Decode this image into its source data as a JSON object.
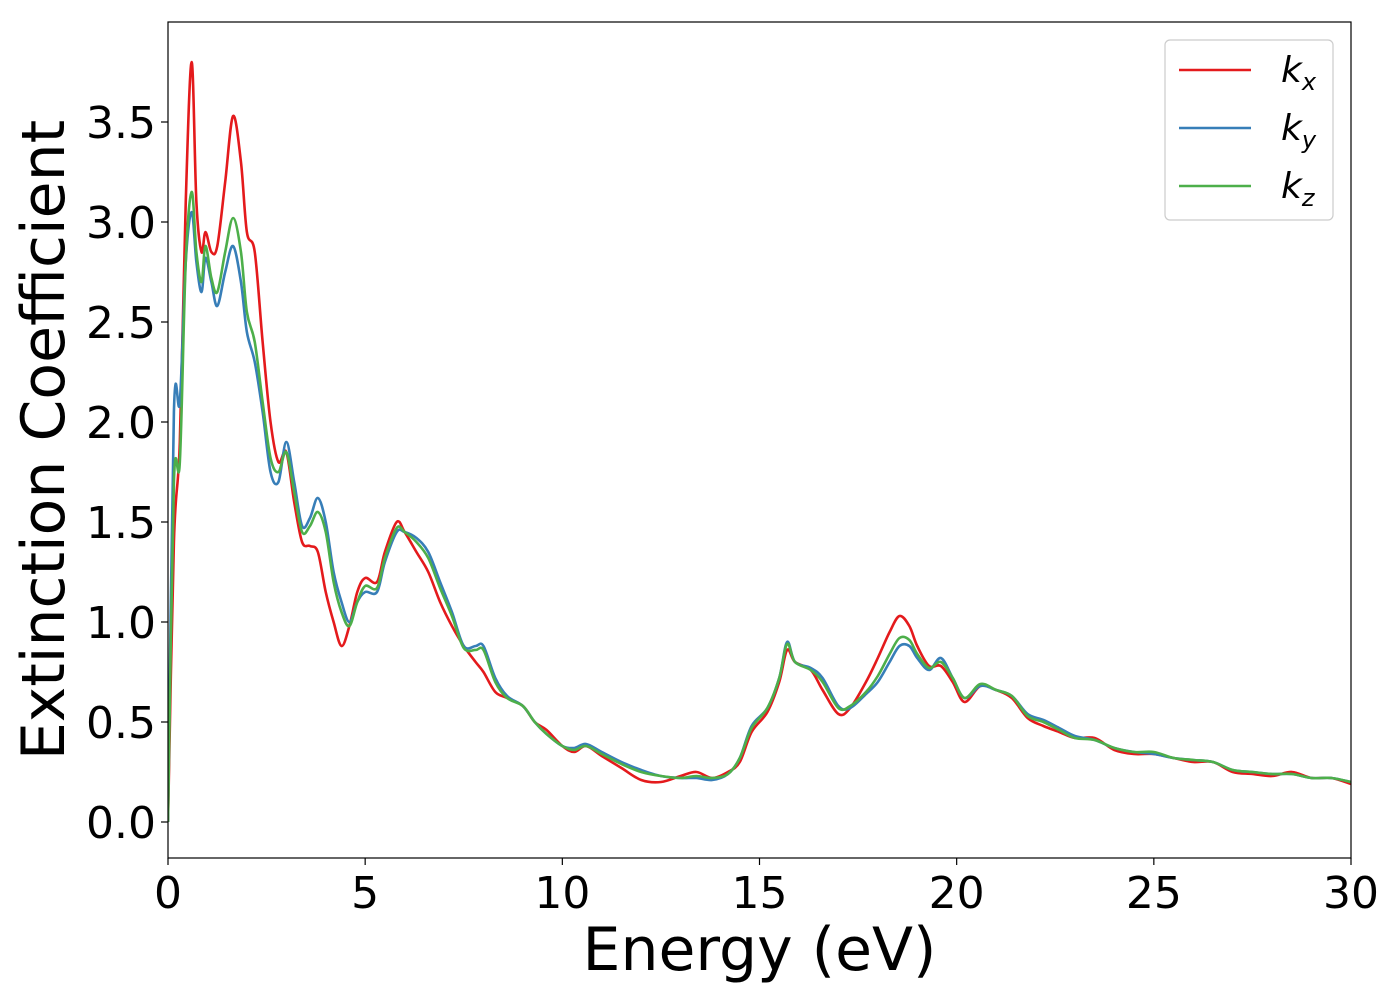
{
  "chart_data": {
    "type": "line",
    "title": "",
    "xlabel": "Energy (eV)",
    "ylabel": "Extinction Coefficient",
    "xlim": [
      0,
      30
    ],
    "ylim": [
      -0.18,
      4.0
    ],
    "xticks": [
      0,
      5,
      10,
      15,
      20,
      25,
      30
    ],
    "xtick_labels": [
      "0",
      "5",
      "10",
      "15",
      "20",
      "25",
      "30"
    ],
    "yticks": [
      0.0,
      0.5,
      1.0,
      1.5,
      2.0,
      2.5,
      3.0,
      3.5
    ],
    "ytick_labels": [
      "0.0",
      "0.5",
      "1.0",
      "1.5",
      "2.0",
      "2.5",
      "3.0",
      "3.5"
    ],
    "grid": false,
    "legend_position": "top-right",
    "series": [
      {
        "name": "k_x",
        "label_main": "k",
        "label_sub": "x",
        "color": "#e41a1c",
        "points": [
          [
            0,
            0
          ],
          [
            0.15,
            1.4
          ],
          [
            0.3,
            1.9
          ],
          [
            0.45,
            3.1
          ],
          [
            0.6,
            3.8
          ],
          [
            0.72,
            3.1
          ],
          [
            0.85,
            2.85
          ],
          [
            0.95,
            2.95
          ],
          [
            1.1,
            2.85
          ],
          [
            1.25,
            2.88
          ],
          [
            1.45,
            3.2
          ],
          [
            1.65,
            3.53
          ],
          [
            1.85,
            3.3
          ],
          [
            2.0,
            2.95
          ],
          [
            2.2,
            2.85
          ],
          [
            2.4,
            2.4
          ],
          [
            2.6,
            2.0
          ],
          [
            2.8,
            1.8
          ],
          [
            3.0,
            1.85
          ],
          [
            3.2,
            1.6
          ],
          [
            3.4,
            1.4
          ],
          [
            3.6,
            1.38
          ],
          [
            3.8,
            1.35
          ],
          [
            4.0,
            1.15
          ],
          [
            4.2,
            1.0
          ],
          [
            4.4,
            0.88
          ],
          [
            4.6,
            0.98
          ],
          [
            4.8,
            1.15
          ],
          [
            5.0,
            1.22
          ],
          [
            5.3,
            1.2
          ],
          [
            5.5,
            1.35
          ],
          [
            5.8,
            1.5
          ],
          [
            6.0,
            1.45
          ],
          [
            6.3,
            1.35
          ],
          [
            6.6,
            1.25
          ],
          [
            6.9,
            1.1
          ],
          [
            7.2,
            0.98
          ],
          [
            7.5,
            0.88
          ],
          [
            7.8,
            0.8
          ],
          [
            8.0,
            0.75
          ],
          [
            8.3,
            0.65
          ],
          [
            8.6,
            0.62
          ],
          [
            9.0,
            0.58
          ],
          [
            9.3,
            0.5
          ],
          [
            9.6,
            0.46
          ],
          [
            10.0,
            0.38
          ],
          [
            10.3,
            0.35
          ],
          [
            10.6,
            0.38
          ],
          [
            11.0,
            0.33
          ],
          [
            11.5,
            0.27
          ],
          [
            12.0,
            0.21
          ],
          [
            12.5,
            0.2
          ],
          [
            13.0,
            0.23
          ],
          [
            13.4,
            0.25
          ],
          [
            13.8,
            0.22
          ],
          [
            14.2,
            0.25
          ],
          [
            14.5,
            0.3
          ],
          [
            14.8,
            0.45
          ],
          [
            15.2,
            0.55
          ],
          [
            15.5,
            0.7
          ],
          [
            15.7,
            0.86
          ],
          [
            15.9,
            0.8
          ],
          [
            16.3,
            0.76
          ],
          [
            16.6,
            0.66
          ],
          [
            17.0,
            0.54
          ],
          [
            17.3,
            0.57
          ],
          [
            17.7,
            0.7
          ],
          [
            18.0,
            0.82
          ],
          [
            18.3,
            0.95
          ],
          [
            18.55,
            1.03
          ],
          [
            18.8,
            0.98
          ],
          [
            19.0,
            0.88
          ],
          [
            19.3,
            0.78
          ],
          [
            19.6,
            0.78
          ],
          [
            19.9,
            0.7
          ],
          [
            20.2,
            0.6
          ],
          [
            20.6,
            0.68
          ],
          [
            21.0,
            0.66
          ],
          [
            21.4,
            0.62
          ],
          [
            21.8,
            0.52
          ],
          [
            22.2,
            0.48
          ],
          [
            22.6,
            0.45
          ],
          [
            23.0,
            0.42
          ],
          [
            23.5,
            0.42
          ],
          [
            24.0,
            0.36
          ],
          [
            24.5,
            0.34
          ],
          [
            25.0,
            0.34
          ],
          [
            25.5,
            0.32
          ],
          [
            26.0,
            0.3
          ],
          [
            26.5,
            0.3
          ],
          [
            27.0,
            0.25
          ],
          [
            27.5,
            0.24
          ],
          [
            28.0,
            0.23
          ],
          [
            28.5,
            0.25
          ],
          [
            29.0,
            0.22
          ],
          [
            29.5,
            0.22
          ],
          [
            30.0,
            0.19
          ]
        ]
      },
      {
        "name": "k_y",
        "label_main": "k",
        "label_sub": "y",
        "color": "#377eb8",
        "points": [
          [
            0,
            0
          ],
          [
            0.15,
            2.05
          ],
          [
            0.3,
            2.1
          ],
          [
            0.45,
            2.8
          ],
          [
            0.6,
            3.05
          ],
          [
            0.72,
            2.8
          ],
          [
            0.85,
            2.65
          ],
          [
            0.95,
            2.82
          ],
          [
            1.1,
            2.7
          ],
          [
            1.25,
            2.58
          ],
          [
            1.45,
            2.75
          ],
          [
            1.65,
            2.88
          ],
          [
            1.85,
            2.7
          ],
          [
            2.0,
            2.45
          ],
          [
            2.2,
            2.3
          ],
          [
            2.4,
            2.05
          ],
          [
            2.6,
            1.75
          ],
          [
            2.8,
            1.7
          ],
          [
            3.0,
            1.9
          ],
          [
            3.2,
            1.7
          ],
          [
            3.4,
            1.48
          ],
          [
            3.6,
            1.52
          ],
          [
            3.8,
            1.62
          ],
          [
            4.0,
            1.5
          ],
          [
            4.2,
            1.25
          ],
          [
            4.4,
            1.1
          ],
          [
            4.6,
            1.0
          ],
          [
            4.8,
            1.1
          ],
          [
            5.0,
            1.15
          ],
          [
            5.3,
            1.15
          ],
          [
            5.5,
            1.3
          ],
          [
            5.8,
            1.45
          ],
          [
            6.0,
            1.45
          ],
          [
            6.3,
            1.42
          ],
          [
            6.6,
            1.35
          ],
          [
            6.9,
            1.2
          ],
          [
            7.2,
            1.05
          ],
          [
            7.5,
            0.88
          ],
          [
            7.8,
            0.88
          ],
          [
            8.0,
            0.88
          ],
          [
            8.3,
            0.72
          ],
          [
            8.6,
            0.63
          ],
          [
            9.0,
            0.58
          ],
          [
            9.3,
            0.5
          ],
          [
            9.6,
            0.44
          ],
          [
            10.0,
            0.38
          ],
          [
            10.3,
            0.37
          ],
          [
            10.6,
            0.39
          ],
          [
            11.0,
            0.35
          ],
          [
            11.5,
            0.3
          ],
          [
            12.0,
            0.26
          ],
          [
            12.5,
            0.23
          ],
          [
            13.0,
            0.22
          ],
          [
            13.4,
            0.22
          ],
          [
            13.8,
            0.21
          ],
          [
            14.2,
            0.24
          ],
          [
            14.5,
            0.32
          ],
          [
            14.8,
            0.48
          ],
          [
            15.2,
            0.57
          ],
          [
            15.5,
            0.72
          ],
          [
            15.7,
            0.9
          ],
          [
            15.9,
            0.8
          ],
          [
            16.3,
            0.77
          ],
          [
            16.6,
            0.72
          ],
          [
            17.0,
            0.58
          ],
          [
            17.3,
            0.57
          ],
          [
            17.7,
            0.64
          ],
          [
            18.0,
            0.7
          ],
          [
            18.3,
            0.8
          ],
          [
            18.55,
            0.88
          ],
          [
            18.8,
            0.88
          ],
          [
            19.0,
            0.82
          ],
          [
            19.3,
            0.76
          ],
          [
            19.6,
            0.82
          ],
          [
            19.9,
            0.72
          ],
          [
            20.2,
            0.62
          ],
          [
            20.6,
            0.68
          ],
          [
            21.0,
            0.66
          ],
          [
            21.4,
            0.63
          ],
          [
            21.8,
            0.54
          ],
          [
            22.2,
            0.51
          ],
          [
            22.6,
            0.47
          ],
          [
            23.0,
            0.43
          ],
          [
            23.5,
            0.41
          ],
          [
            24.0,
            0.37
          ],
          [
            24.5,
            0.35
          ],
          [
            25.0,
            0.34
          ],
          [
            25.5,
            0.32
          ],
          [
            26.0,
            0.31
          ],
          [
            26.5,
            0.3
          ],
          [
            27.0,
            0.26
          ],
          [
            27.5,
            0.25
          ],
          [
            28.0,
            0.24
          ],
          [
            28.5,
            0.24
          ],
          [
            29.0,
            0.22
          ],
          [
            29.5,
            0.22
          ],
          [
            30.0,
            0.2
          ]
        ]
      },
      {
        "name": "k_z",
        "label_main": "k",
        "label_sub": "z",
        "color": "#4daf4a",
        "points": [
          [
            0,
            0
          ],
          [
            0.15,
            1.7
          ],
          [
            0.3,
            1.8
          ],
          [
            0.45,
            2.8
          ],
          [
            0.6,
            3.15
          ],
          [
            0.72,
            2.85
          ],
          [
            0.85,
            2.7
          ],
          [
            0.95,
            2.88
          ],
          [
            1.1,
            2.72
          ],
          [
            1.25,
            2.65
          ],
          [
            1.45,
            2.85
          ],
          [
            1.65,
            3.02
          ],
          [
            1.85,
            2.85
          ],
          [
            2.0,
            2.55
          ],
          [
            2.2,
            2.4
          ],
          [
            2.4,
            2.1
          ],
          [
            2.6,
            1.82
          ],
          [
            2.8,
            1.75
          ],
          [
            3.0,
            1.85
          ],
          [
            3.2,
            1.65
          ],
          [
            3.4,
            1.45
          ],
          [
            3.6,
            1.48
          ],
          [
            3.8,
            1.55
          ],
          [
            4.0,
            1.45
          ],
          [
            4.2,
            1.2
          ],
          [
            4.4,
            1.05
          ],
          [
            4.6,
            0.98
          ],
          [
            4.8,
            1.1
          ],
          [
            5.0,
            1.18
          ],
          [
            5.3,
            1.17
          ],
          [
            5.5,
            1.32
          ],
          [
            5.8,
            1.47
          ],
          [
            6.0,
            1.45
          ],
          [
            6.3,
            1.4
          ],
          [
            6.6,
            1.32
          ],
          [
            6.9,
            1.17
          ],
          [
            7.2,
            1.03
          ],
          [
            7.5,
            0.87
          ],
          [
            7.8,
            0.86
          ],
          [
            8.0,
            0.86
          ],
          [
            8.3,
            0.7
          ],
          [
            8.6,
            0.62
          ],
          [
            9.0,
            0.58
          ],
          [
            9.3,
            0.5
          ],
          [
            9.6,
            0.44
          ],
          [
            10.0,
            0.38
          ],
          [
            10.3,
            0.36
          ],
          [
            10.6,
            0.38
          ],
          [
            11.0,
            0.34
          ],
          [
            11.5,
            0.29
          ],
          [
            12.0,
            0.25
          ],
          [
            12.5,
            0.23
          ],
          [
            13.0,
            0.22
          ],
          [
            13.4,
            0.23
          ],
          [
            13.8,
            0.22
          ],
          [
            14.2,
            0.24
          ],
          [
            14.5,
            0.32
          ],
          [
            14.8,
            0.47
          ],
          [
            15.2,
            0.57
          ],
          [
            15.5,
            0.72
          ],
          [
            15.7,
            0.89
          ],
          [
            15.9,
            0.8
          ],
          [
            16.3,
            0.76
          ],
          [
            16.6,
            0.7
          ],
          [
            17.0,
            0.57
          ],
          [
            17.3,
            0.58
          ],
          [
            17.7,
            0.65
          ],
          [
            18.0,
            0.73
          ],
          [
            18.3,
            0.84
          ],
          [
            18.55,
            0.92
          ],
          [
            18.8,
            0.91
          ],
          [
            19.0,
            0.84
          ],
          [
            19.3,
            0.77
          ],
          [
            19.6,
            0.8
          ],
          [
            19.9,
            0.72
          ],
          [
            20.2,
            0.62
          ],
          [
            20.6,
            0.69
          ],
          [
            21.0,
            0.66
          ],
          [
            21.4,
            0.63
          ],
          [
            21.8,
            0.53
          ],
          [
            22.2,
            0.5
          ],
          [
            22.6,
            0.46
          ],
          [
            23.0,
            0.42
          ],
          [
            23.5,
            0.41
          ],
          [
            24.0,
            0.37
          ],
          [
            24.5,
            0.35
          ],
          [
            25.0,
            0.35
          ],
          [
            25.5,
            0.32
          ],
          [
            26.0,
            0.31
          ],
          [
            26.5,
            0.3
          ],
          [
            27.0,
            0.26
          ],
          [
            27.5,
            0.25
          ],
          [
            28.0,
            0.24
          ],
          [
            28.5,
            0.24
          ],
          [
            29.0,
            0.22
          ],
          [
            29.5,
            0.22
          ],
          [
            30.0,
            0.2
          ]
        ]
      }
    ]
  }
}
